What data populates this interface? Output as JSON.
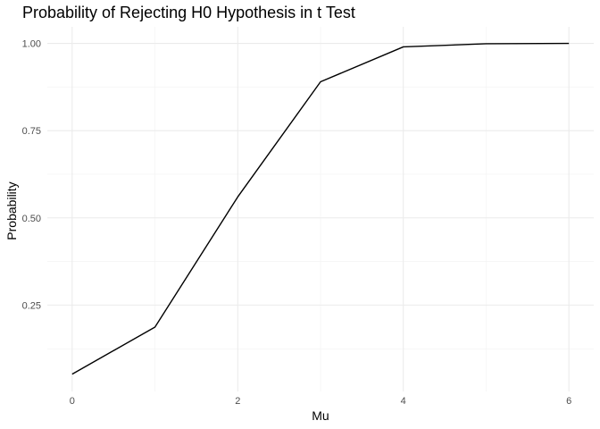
{
  "chart_data": {
    "type": "line",
    "title": "Probability of Rejecting H0 Hypothesis in t Test",
    "xlabel": "Mu",
    "ylabel": "Probability",
    "x": [
      0,
      1,
      2,
      3,
      4,
      5,
      6
    ],
    "series": [
      {
        "values": [
          0.052,
          0.187,
          0.56,
          0.89,
          0.99,
          0.999,
          1.0
        ]
      }
    ],
    "xlim": [
      -0.3,
      6.3
    ],
    "ylim": [
      0.0025,
      1.0475
    ],
    "x_ticks": [
      0,
      2,
      4,
      6
    ],
    "x_tick_labels": [
      "0",
      "2",
      "4",
      "6"
    ],
    "x_minor_ticks": [
      1,
      3,
      5
    ],
    "y_ticks": [
      0.25,
      0.5,
      0.75,
      1.0
    ],
    "y_tick_labels": [
      "0.25",
      "0.50",
      "0.75",
      "1.00"
    ],
    "y_minor_ticks": [
      0.125,
      0.375,
      0.625,
      0.875
    ],
    "grid": true,
    "legend": "none",
    "line_color": "#000000",
    "grid_color": "#ebebeb"
  }
}
